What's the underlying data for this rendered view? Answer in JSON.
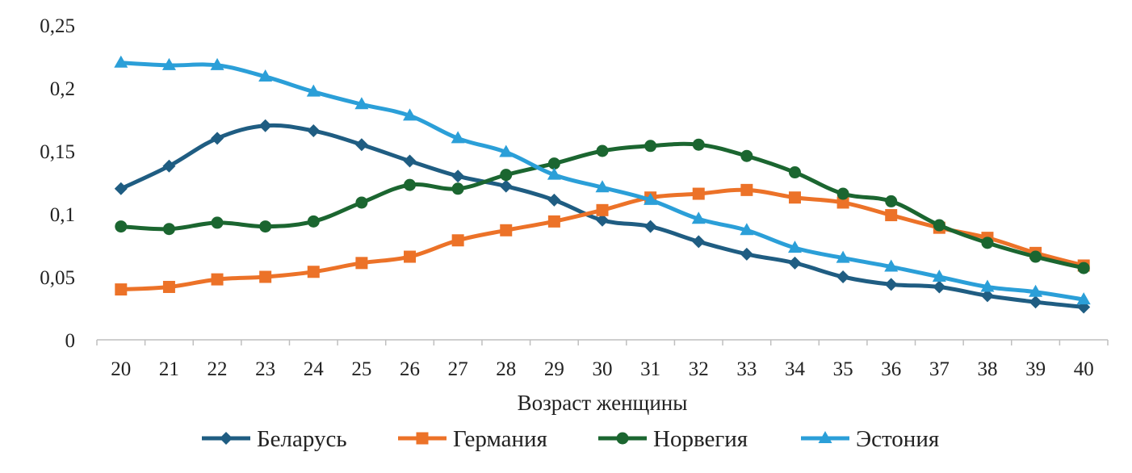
{
  "chart_data": {
    "type": "line",
    "title": "",
    "xlabel": "Возраст женщины",
    "ylabel": "",
    "x": [
      20,
      21,
      22,
      23,
      24,
      25,
      26,
      27,
      28,
      29,
      30,
      31,
      32,
      33,
      34,
      35,
      36,
      37,
      38,
      39,
      40
    ],
    "y_ticks": [
      "0",
      "0,05",
      "0,1",
      "0,15",
      "0,2",
      "0,25"
    ],
    "ylim": [
      0,
      0.25
    ],
    "grid": false,
    "legend_position": "bottom",
    "series": [
      {
        "name": "Беларусь",
        "color": "#1f5d82",
        "marker": "diamond",
        "values": [
          0.12,
          0.138,
          0.16,
          0.17,
          0.166,
          0.155,
          0.142,
          0.13,
          0.122,
          0.111,
          0.095,
          0.09,
          0.078,
          0.068,
          0.061,
          0.05,
          0.044,
          0.042,
          0.035,
          0.03,
          0.026
        ]
      },
      {
        "name": "Германия",
        "color": "#ec7228",
        "marker": "square",
        "values": [
          0.04,
          0.042,
          0.048,
          0.05,
          0.054,
          0.061,
          0.066,
          0.079,
          0.087,
          0.094,
          0.103,
          0.113,
          0.116,
          0.119,
          0.113,
          0.109,
          0.099,
          0.089,
          0.081,
          0.069,
          0.059
        ]
      },
      {
        "name": "Норвегия",
        "color": "#1b6630",
        "marker": "circle",
        "values": [
          0.09,
          0.088,
          0.093,
          0.09,
          0.094,
          0.109,
          0.123,
          0.12,
          0.131,
          0.14,
          0.15,
          0.154,
          0.155,
          0.146,
          0.133,
          0.116,
          0.11,
          0.091,
          0.077,
          0.066,
          0.057
        ]
      },
      {
        "name": "Эстония",
        "color": "#2b9fd8",
        "marker": "triangle",
        "values": [
          0.22,
          0.218,
          0.218,
          0.209,
          0.197,
          0.187,
          0.178,
          0.16,
          0.149,
          0.131,
          0.121,
          0.111,
          0.096,
          0.087,
          0.073,
          0.065,
          0.058,
          0.05,
          0.042,
          0.038,
          0.032
        ]
      }
    ]
  }
}
